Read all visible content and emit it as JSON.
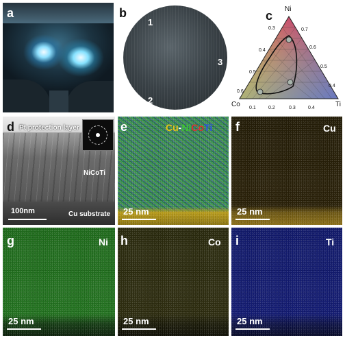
{
  "panels": {
    "a": {
      "label": "a"
    },
    "b": {
      "label": "b",
      "markers": [
        "1",
        "2",
        "3"
      ]
    },
    "c": {
      "label": "c",
      "vertices": {
        "top": "Ni",
        "left": "Co",
        "right": "Ti"
      },
      "ticks_left": [
        "0.3",
        "0.4",
        "0.5",
        "0.6"
      ],
      "ticks_right": [
        "0.7",
        "0.6",
        "0.5",
        "0.4"
      ],
      "ticks_bottom": [
        "0.1",
        "0.2",
        "0.3",
        "0.4"
      ]
    },
    "d": {
      "label": "d",
      "top_text": "Pt protection layer",
      "middle_text": "NiCoTi",
      "bottom_text": "Cu substrate",
      "scale": "100nm"
    },
    "e": {
      "label": "e",
      "title_cu": "Cu",
      "title_dash": "-",
      "title_ni": "Ni",
      "title_co": "Co",
      "title_ti": "Ti",
      "scale": "25 nm"
    },
    "f": {
      "label": "f",
      "element": "Cu",
      "scale": "25 nm"
    },
    "g": {
      "label": "g",
      "element": "Ni",
      "scale": "25 nm"
    },
    "h": {
      "label": "h",
      "element": "Co",
      "scale": "25 nm"
    },
    "i": {
      "label": "i",
      "element": "Ti",
      "scale": "25 nm"
    }
  },
  "colors": {
    "cu": "#e8c31a",
    "ni": "#3fc23a",
    "co": "#d93030",
    "ti": "#2d55e0"
  }
}
